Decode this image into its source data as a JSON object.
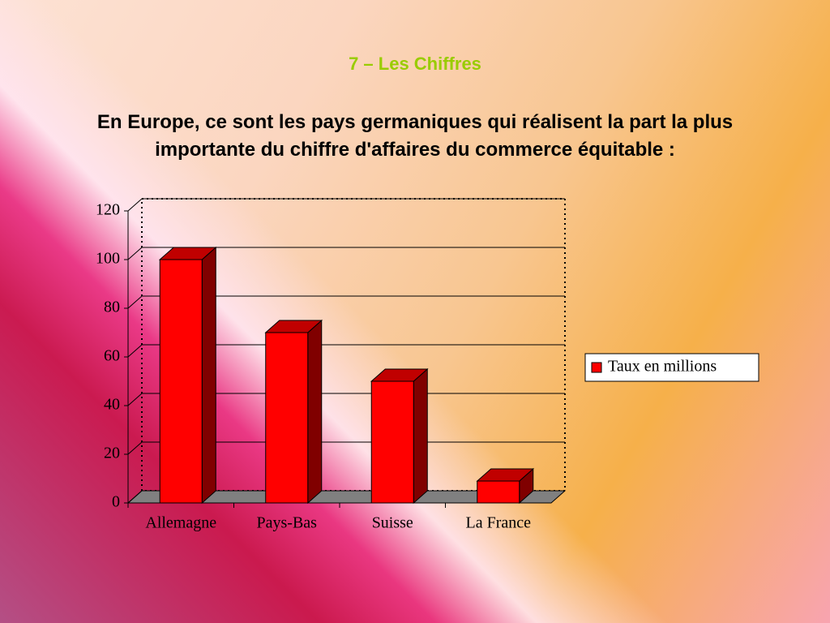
{
  "header": {
    "title": "7 – Les Chiffres",
    "subtitle": "En Europe, ce sont les pays germaniques qui réalisent la part la plus importante du chiffre d'affaires du commerce équitable :"
  },
  "chart_data": {
    "type": "bar3d",
    "categories": [
      "Allemagne",
      "Pays-Bas",
      "Suisse",
      "La France"
    ],
    "series": [
      {
        "name": "Taux en millions",
        "color": "#ff0000",
        "values": [
          100,
          70,
          50,
          9
        ]
      }
    ],
    "ylim": [
      0,
      120
    ],
    "yticks": [
      0,
      20,
      40,
      60,
      80,
      100,
      120
    ],
    "grid": true,
    "legend": "right"
  }
}
